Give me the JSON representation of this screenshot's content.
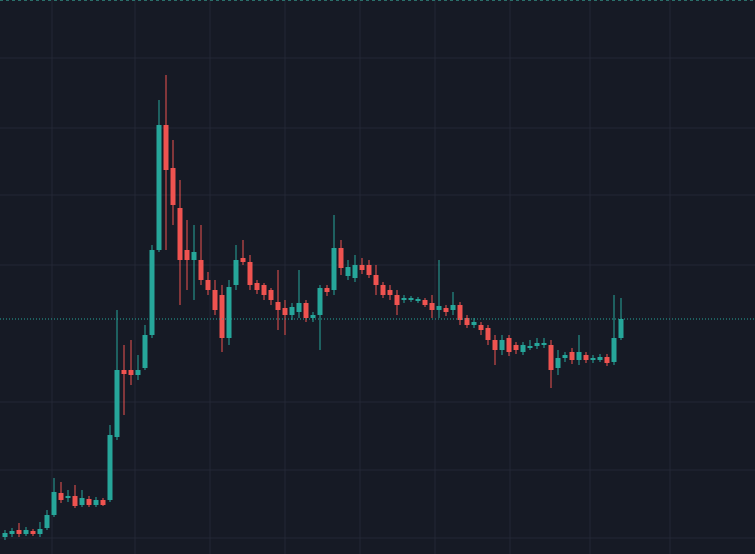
{
  "chart_data": {
    "type": "candlestick",
    "ylim": [
      0,
      554
    ],
    "up_color": "#26a69a",
    "down_color": "#ef5350",
    "last_price_line_color": "#26a69a",
    "open": [
      17,
      20,
      24,
      20,
      23,
      20,
      26,
      39,
      61,
      56,
      58,
      49,
      55,
      49,
      54,
      54,
      117,
      184,
      184,
      179,
      186,
      219,
      304,
      429,
      386,
      346,
      304,
      294,
      294,
      274,
      264,
      259,
      216,
      269,
      296,
      292,
      271,
      269,
      264,
      252,
      246,
      239,
      242,
      251,
      236,
      239,
      266,
      264,
      306,
      278,
      276,
      289,
      289,
      279,
      269,
      264,
      259,
      254,
      254,
      253,
      254,
      251,
      244,
      246,
      244,
      249,
      236,
      229,
      229,
      226,
      214,
      204,
      216,
      209,
      202,
      206,
      208,
      209,
      209,
      186,
      196,
      202,
      194,
      199,
      194,
      194,
      197,
      192,
      216
    ],
    "high": [
      24,
      26,
      31,
      27,
      25,
      32,
      44,
      76,
      72,
      64,
      69,
      64,
      58,
      57,
      56,
      129,
      244,
      209,
      214,
      199,
      229,
      309,
      454,
      479,
      414,
      374,
      334,
      329,
      329,
      282,
      274,
      269,
      274,
      309,
      314,
      299,
      274,
      271,
      266,
      284,
      254,
      251,
      284,
      254,
      242,
      269,
      269,
      339,
      314,
      294,
      299,
      296,
      294,
      289,
      272,
      269,
      264,
      259,
      258,
      257,
      256,
      259,
      294,
      249,
      262,
      252,
      239,
      236,
      232,
      229,
      219,
      219,
      219,
      212,
      212,
      214,
      216,
      216,
      214,
      204,
      202,
      206,
      219,
      202,
      199,
      200,
      200,
      259,
      256
    ],
    "low": [
      14,
      17,
      17,
      18,
      18,
      17,
      24,
      37,
      51,
      52,
      46,
      47,
      47,
      47,
      48,
      52,
      114,
      139,
      169,
      174,
      184,
      216,
      302,
      304,
      329,
      249,
      264,
      254,
      269,
      259,
      239,
      202,
      209,
      264,
      289,
      264,
      260,
      254,
      249,
      224,
      219,
      234,
      236,
      232,
      232,
      204,
      258,
      259,
      279,
      274,
      272,
      280,
      276,
      259,
      256,
      254,
      239,
      251,
      252,
      251,
      247,
      236,
      236,
      238,
      239,
      229,
      226,
      226,
      219,
      209,
      189,
      199,
      198,
      200,
      199,
      204,
      205,
      206,
      166,
      179,
      192,
      190,
      189,
      191,
      191,
      192,
      188,
      189,
      214
    ],
    "close": [
      21,
      23,
      20,
      24,
      20,
      25,
      39,
      62,
      54,
      58,
      48,
      56,
      49,
      54,
      49,
      119,
      184,
      180,
      179,
      184,
      219,
      304,
      429,
      384,
      349,
      294,
      294,
      302,
      274,
      264,
      244,
      216,
      267,
      294,
      292,
      269,
      264,
      259,
      254,
      244,
      239,
      247,
      251,
      236,
      239,
      266,
      262,
      306,
      286,
      287,
      289,
      284,
      279,
      269,
      259,
      259,
      249,
      256,
      256,
      255,
      249,
      244,
      248,
      242,
      249,
      234,
      229,
      232,
      224,
      214,
      204,
      214,
      202,
      204,
      209,
      208,
      211,
      211,
      184,
      196,
      199,
      194,
      202,
      194,
      196,
      197,
      191,
      216,
      235
    ]
  }
}
